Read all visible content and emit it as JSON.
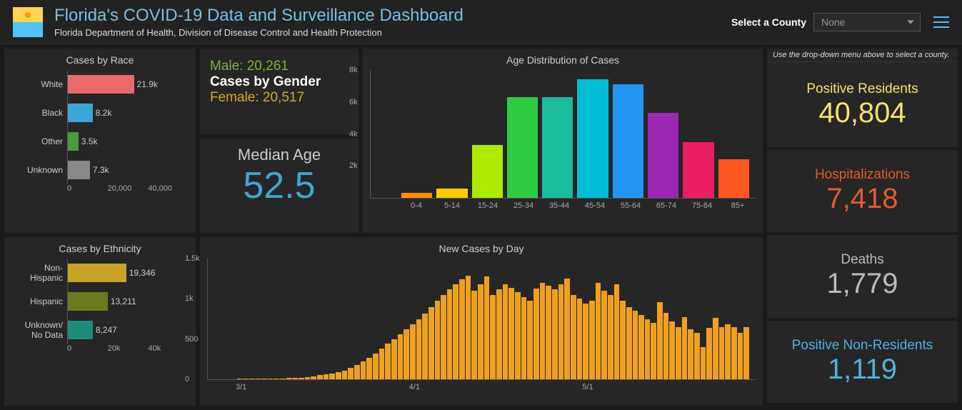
{
  "header": {
    "title": "Florida's COVID-19 Data and Surveillance Dashboard",
    "subtitle": "Florida Department of Health, Division of Disease Control and Health Protection",
    "county_label": "Select a County",
    "county_value": "None"
  },
  "hint": "Use the drop-down menu above to select a county.",
  "race_chart": {
    "title": "Cases by Race",
    "type": "horizontal-bar",
    "xmax": 40000,
    "xticks": [
      "0",
      "20,000",
      "40,000"
    ],
    "items": [
      {
        "label": "White",
        "value": 21900,
        "display": "21.9k",
        "color": "#e86a6a"
      },
      {
        "label": "Black",
        "value": 8200,
        "display": "8.2k",
        "color": "#3ba7d6"
      },
      {
        "label": "Other",
        "value": 3500,
        "display": "3.5k",
        "color": "#4a9b3e"
      },
      {
        "label": "Unknown",
        "value": 7300,
        "display": "7.3k",
        "color": "#888888"
      }
    ]
  },
  "eth_chart": {
    "title": "Cases by Ethnicity",
    "type": "horizontal-bar",
    "xmax": 40000,
    "xticks": [
      "0",
      "20k",
      "40k"
    ],
    "items": [
      {
        "label": "Non-Hispanic",
        "value": 19346,
        "display": "19,346",
        "color": "#c9a227"
      },
      {
        "label": "Hispanic",
        "value": 13211,
        "display": "13,211",
        "color": "#6b7b1e"
      },
      {
        "label": "Unknown/ No Data",
        "value": 8247,
        "display": "8,247",
        "color": "#1f8b7a"
      }
    ]
  },
  "gender": {
    "male_label": "Male: 20,261",
    "title": "Cases by Gender",
    "female_label": "Female: 20,517"
  },
  "median": {
    "label": "Median Age",
    "value": "52.5"
  },
  "age_chart": {
    "title": "Age Distribution of Cases",
    "type": "bar",
    "ymax": 8000,
    "yticks": [
      {
        "v": 8000,
        "l": "8k"
      },
      {
        "v": 6000,
        "l": "6k"
      },
      {
        "v": 4000,
        "l": "4k"
      },
      {
        "v": 2000,
        "l": "2k"
      }
    ],
    "items": [
      {
        "label": "0-4",
        "value": 300,
        "color": "#ff8c00"
      },
      {
        "label": "5-14",
        "value": 600,
        "color": "#ffcc00"
      },
      {
        "label": "15-24",
        "value": 3300,
        "color": "#aeea00"
      },
      {
        "label": "25-34",
        "value": 6300,
        "color": "#2ecc40"
      },
      {
        "label": "35-44",
        "value": 6300,
        "color": "#1abc9c"
      },
      {
        "label": "45-54",
        "value": 7400,
        "color": "#00bcd4"
      },
      {
        "label": "55-64",
        "value": 7100,
        "color": "#2196f3"
      },
      {
        "label": "65-74",
        "value": 5300,
        "color": "#9c27b0"
      },
      {
        "label": "75-84",
        "value": 3500,
        "color": "#e91e63"
      },
      {
        "label": "85+",
        "value": 2400,
        "color": "#ff5722"
      }
    ]
  },
  "day_chart": {
    "title": "New Cases by Day",
    "type": "bar",
    "ymax": 1500,
    "yticks": [
      {
        "v": 1500,
        "l": "1.5k"
      },
      {
        "v": 1000,
        "l": "1k"
      },
      {
        "v": 500,
        "l": "500"
      },
      {
        "v": 0,
        "l": "0"
      }
    ],
    "xticks": [
      "3/1",
      "4/1",
      "5/1"
    ],
    "bar_color": "#f0a020",
    "values": [
      5,
      5,
      8,
      8,
      10,
      10,
      12,
      12,
      15,
      20,
      22,
      30,
      40,
      50,
      60,
      70,
      90,
      110,
      140,
      180,
      220,
      270,
      320,
      380,
      440,
      500,
      560,
      620,
      680,
      750,
      820,
      900,
      980,
      1050,
      1120,
      1180,
      1240,
      1290,
      1100,
      1180,
      1280,
      1050,
      1120,
      1180,
      1140,
      1080,
      1020,
      980,
      1130,
      1200,
      1160,
      1120,
      1180,
      1250,
      1050,
      1000,
      940,
      980,
      1200,
      1100,
      1050,
      1180,
      980,
      900,
      850,
      800,
      750,
      700,
      960,
      830,
      720,
      650,
      770,
      620,
      580,
      400,
      640,
      760,
      650,
      680,
      650,
      580,
      650
    ]
  },
  "stats": [
    {
      "label": "Positive Residents",
      "value": "40,804",
      "label_color": "#f7e26b",
      "value_color": "#f7e26b"
    },
    {
      "label": "Hospitalizations",
      "value": "7,418",
      "label_color": "#e65a2e",
      "value_color": "#e65a2e"
    },
    {
      "label": "Deaths",
      "value": "1,779",
      "label_color": "#bbbbbb",
      "value_color": "#bbbbbb"
    },
    {
      "label": "Positive Non-Residents",
      "value": "1,119",
      "label_color": "#4fb3d9",
      "value_color": "#4fb3d9"
    }
  ]
}
